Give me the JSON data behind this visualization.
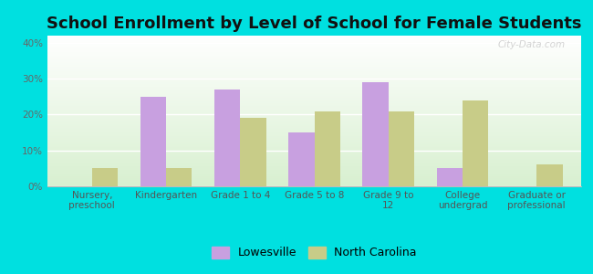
{
  "title": "School Enrollment by Level of School for Female Students",
  "categories": [
    "Nursery,\npreschool",
    "Kindergarten",
    "Grade 1 to 4",
    "Grade 5 to 8",
    "Grade 9 to\n12",
    "College\nundergrad",
    "Graduate or\nprofessional"
  ],
  "lowesville": [
    0,
    25,
    27,
    15,
    29,
    5,
    0
  ],
  "north_carolina": [
    5,
    5,
    19,
    21,
    21,
    24,
    6
  ],
  "bar_color_lowesville": "#c8a0e0",
  "bar_color_nc": "#c8cc88",
  "background_color": "#00e0e0",
  "ylabel_ticks": [
    "0%",
    "10%",
    "20%",
    "30%",
    "40%"
  ],
  "yticks": [
    0,
    10,
    20,
    30,
    40
  ],
  "ylim": [
    0,
    42
  ],
  "bar_width": 0.35,
  "legend_labels": [
    "Lowesville",
    "North Carolina"
  ],
  "title_fontsize": 13,
  "tick_fontsize": 7.5,
  "legend_fontsize": 9,
  "watermark": "City-Data.com"
}
